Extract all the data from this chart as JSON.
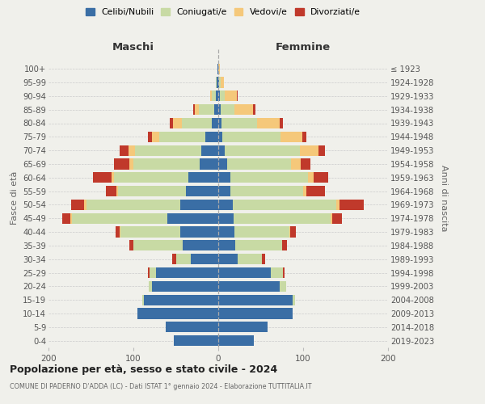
{
  "age_groups": [
    "0-4",
    "5-9",
    "10-14",
    "15-19",
    "20-24",
    "25-29",
    "30-34",
    "35-39",
    "40-44",
    "45-49",
    "50-54",
    "55-59",
    "60-64",
    "65-69",
    "70-74",
    "75-79",
    "80-84",
    "85-89",
    "90-94",
    "95-99",
    "100+"
  ],
  "birth_years": [
    "2019-2023",
    "2014-2018",
    "2009-2013",
    "2004-2008",
    "1999-2003",
    "1994-1998",
    "1989-1993",
    "1984-1988",
    "1979-1983",
    "1974-1978",
    "1969-1973",
    "1964-1968",
    "1959-1963",
    "1954-1958",
    "1949-1953",
    "1944-1948",
    "1939-1943",
    "1934-1938",
    "1929-1933",
    "1924-1928",
    "≤ 1923"
  ],
  "colors": {
    "celibe": "#3a6ea5",
    "coniugato": "#c8daa4",
    "vedovo": "#f5c87a",
    "divorziato": "#c0392b"
  },
  "males": {
    "celibe": [
      52,
      62,
      95,
      88,
      78,
      73,
      32,
      42,
      45,
      60,
      45,
      38,
      35,
      22,
      20,
      15,
      8,
      5,
      3,
      2,
      1
    ],
    "coniugato": [
      0,
      0,
      0,
      2,
      4,
      8,
      18,
      58,
      70,
      112,
      110,
      80,
      88,
      78,
      78,
      55,
      35,
      18,
      5,
      1,
      0
    ],
    "vedovo": [
      0,
      0,
      0,
      0,
      0,
      0,
      0,
      0,
      1,
      2,
      3,
      2,
      3,
      5,
      8,
      8,
      10,
      5,
      2,
      0,
      0
    ],
    "divorziato": [
      0,
      0,
      0,
      0,
      0,
      2,
      4,
      5,
      5,
      10,
      15,
      12,
      22,
      18,
      10,
      5,
      4,
      2,
      0,
      0,
      0
    ]
  },
  "females": {
    "celibe": [
      42,
      58,
      88,
      88,
      72,
      62,
      23,
      20,
      19,
      18,
      17,
      14,
      14,
      10,
      8,
      5,
      4,
      3,
      2,
      1,
      0
    ],
    "coniugato": [
      0,
      0,
      0,
      2,
      8,
      14,
      28,
      55,
      65,
      114,
      122,
      86,
      92,
      76,
      88,
      68,
      42,
      16,
      6,
      2,
      0
    ],
    "vedovo": [
      0,
      0,
      0,
      0,
      0,
      0,
      0,
      0,
      1,
      2,
      4,
      4,
      6,
      11,
      22,
      26,
      26,
      22,
      14,
      4,
      2
    ],
    "divorziato": [
      0,
      0,
      0,
      0,
      0,
      2,
      4,
      6,
      6,
      12,
      28,
      22,
      18,
      12,
      8,
      5,
      4,
      3,
      1,
      0,
      0
    ]
  },
  "title": "Popolazione per età, sesso e stato civile - 2024",
  "subtitle": "COMUNE DI PADERNO D'ADDA (LC) - Dati ISTAT 1° gennaio 2024 - Elaborazione TUTTITALIA.IT",
  "label_maschi": "Maschi",
  "label_femmine": "Femmine",
  "ylabel_left": "Fasce di età",
  "ylabel_right": "Anni di nascita",
  "xlim": 200,
  "legend_labels": [
    "Celibi/Nubili",
    "Coniugati/e",
    "Vedovi/e",
    "Divorziati/e"
  ],
  "bg_color": "#f0f0eb"
}
